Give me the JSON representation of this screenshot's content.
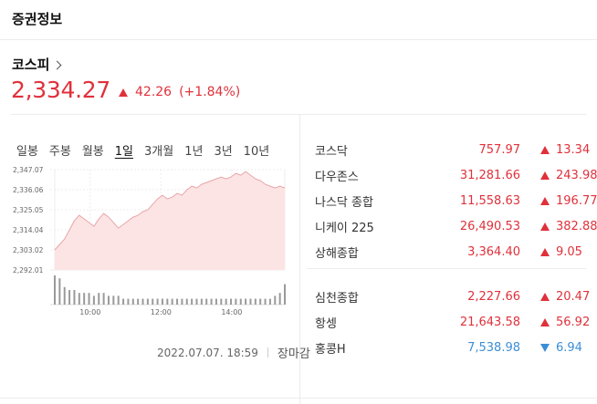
{
  "header": {
    "title": "증권정보"
  },
  "main_index": {
    "name": "코스피",
    "value": "2,334.27",
    "change": "42.26",
    "change_pct": "(+1.84%)",
    "direction": "up"
  },
  "periods": [
    "일봉",
    "주봉",
    "월봉",
    "1일",
    "3개월",
    "1년",
    "3년",
    "10년"
  ],
  "active_period": "1일",
  "timestamp": "2022.07.07. 18:59",
  "market_status": "장마감",
  "colors": {
    "up": "#e0313b",
    "down": "#3c8ed6",
    "area_fill": "#fde4e4"
  },
  "chart_data": {
    "type": "area",
    "y_ticks": [
      "2,347.07",
      "2,336.06",
      "2,325.05",
      "2,314.04",
      "2,303.02",
      "2,292.01"
    ],
    "y_range": [
      2292.01,
      2347.07
    ],
    "x_ticks": [
      "10:00",
      "12:00",
      "14:00"
    ],
    "x_tick_positions_min": [
      60,
      180,
      300
    ],
    "x_range_min": [
      0,
      390
    ],
    "series": [
      {
        "values": [
          2303,
          2306,
          2309,
          2314,
          2319,
          2322,
          2320,
          2318,
          2316,
          2320,
          2323,
          2321,
          2318,
          2315,
          2317,
          2319,
          2321,
          2322,
          2324,
          2325,
          2328,
          2331,
          2333,
          2331,
          2332,
          2334,
          2333,
          2336,
          2338,
          2337,
          2339,
          2340,
          2341,
          2342,
          2343,
          2342,
          2343,
          2345,
          2344,
          2346,
          2344,
          2342,
          2341,
          2339,
          2338,
          2337,
          2338,
          2337
        ]
      }
    ],
    "volume": [
      10,
      9,
      6,
      5,
      5,
      4,
      4,
      4,
      3,
      4,
      4,
      3,
      3,
      3,
      2,
      2,
      2,
      2,
      2,
      2,
      2,
      2,
      2,
      2,
      2,
      2,
      2,
      2,
      2,
      2,
      2,
      2,
      2,
      2,
      2,
      2,
      2,
      2,
      2,
      2,
      2,
      2,
      2,
      2,
      2,
      3,
      4,
      7
    ]
  },
  "quotes_group1": [
    {
      "name": "코스닥",
      "price": "757.97",
      "change": "13.34",
      "dir": "up"
    },
    {
      "name": "다우존스",
      "price": "31,281.66",
      "change": "243.98",
      "dir": "up"
    },
    {
      "name": "나스닥 종합",
      "price": "11,558.63",
      "change": "196.77",
      "dir": "up"
    },
    {
      "name": "니케이 225",
      "price": "26,490.53",
      "change": "382.88",
      "dir": "up"
    },
    {
      "name": "상해종합",
      "price": "3,364.40",
      "change": "9.05",
      "dir": "up"
    }
  ],
  "quotes_group2": [
    {
      "name": "심천종합",
      "price": "2,227.66",
      "change": "20.47",
      "dir": "up"
    },
    {
      "name": "항셍",
      "price": "21,643.58",
      "change": "56.92",
      "dir": "up"
    },
    {
      "name": "홍콩H",
      "price": "7,538.98",
      "change": "6.94",
      "dir": "down"
    }
  ]
}
